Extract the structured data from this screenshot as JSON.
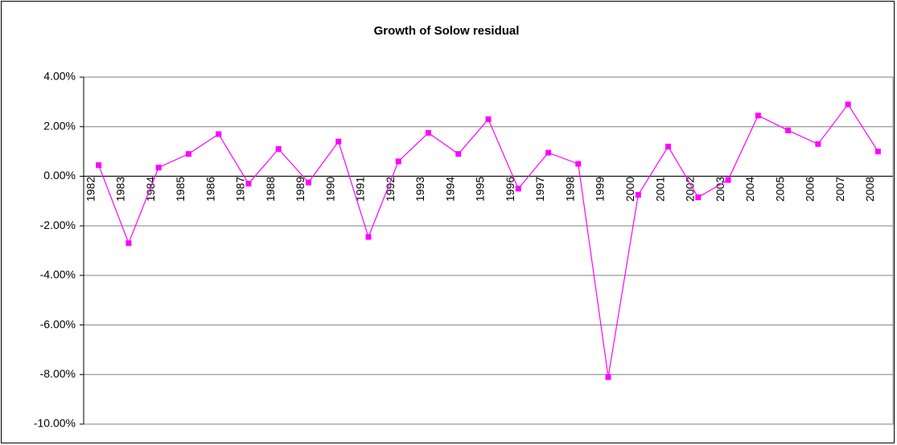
{
  "chart_data": {
    "type": "line",
    "title": "Growth of Solow residual",
    "categories": [
      "1982",
      "1983",
      "1984",
      "1985",
      "1986",
      "1987",
      "1988",
      "1989",
      "1990",
      "1991",
      "1992",
      "1993",
      "1994",
      "1995",
      "1996",
      "1997",
      "1998",
      "1999",
      "2000",
      "2001",
      "2002",
      "2003",
      "2004",
      "2005",
      "2006",
      "2007",
      "2008"
    ],
    "series": [
      {
        "color": "#ff00ff",
        "values": [
          0.45,
          -2.7,
          0.35,
          0.9,
          1.7,
          -0.3,
          1.1,
          -0.25,
          1.4,
          -2.45,
          0.6,
          1.75,
          0.9,
          2.3,
          -0.5,
          0.95,
          0.5,
          -8.1,
          -0.75,
          1.2,
          -0.85,
          -0.15,
          2.45,
          1.85,
          1.3,
          2.9,
          1.0
        ]
      }
    ],
    "ylim": [
      -10,
      4
    ],
    "yticks": [
      {
        "value": -10,
        "label": "-10.00%"
      },
      {
        "value": -8,
        "label": "-8.00%"
      },
      {
        "value": -6,
        "label": "-6.00%"
      },
      {
        "value": -4,
        "label": "-4.00%"
      },
      {
        "value": -2,
        "label": "-2.00%"
      },
      {
        "value": 0,
        "label": "0.00%"
      },
      {
        "value": 2,
        "label": "2.00%"
      },
      {
        "value": 4,
        "label": "4.00%"
      }
    ],
    "grid": true
  }
}
